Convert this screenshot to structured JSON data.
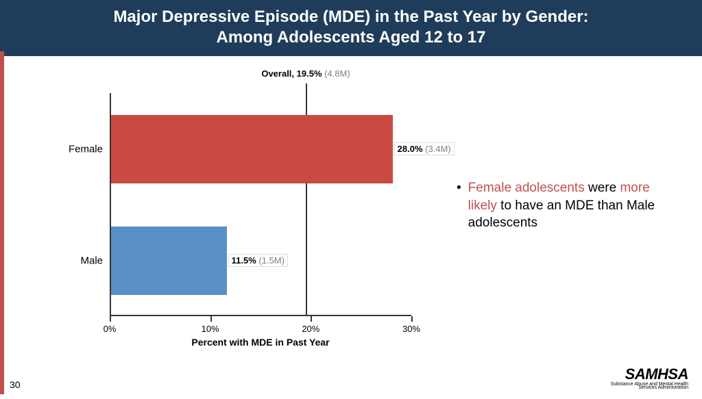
{
  "header": {
    "line1": "Major Depressive Episode (MDE) in the Past Year by Gender:",
    "line2": "Among Adolescents Aged 12 to 17"
  },
  "chart": {
    "type": "bar-horizontal",
    "x_title": "Percent with MDE in Past Year",
    "xlim": [
      0,
      30
    ],
    "tick_step": 10,
    "ticks": [
      {
        "value": 0,
        "label": "0%"
      },
      {
        "value": 10,
        "label": "10%"
      },
      {
        "value": 20,
        "label": "20%"
      },
      {
        "value": 30,
        "label": "30%"
      }
    ],
    "overall": {
      "value": 19.5,
      "label_bold": "Overall, 19.5%",
      "label_grey": " (4.8M)"
    },
    "bars": [
      {
        "category": "Female",
        "value": 28.0,
        "pct_label": "28.0%",
        "count_label": " (3.4M)",
        "color": "#c94a43"
      },
      {
        "category": "Male",
        "value": 11.5,
        "pct_label": "11.5%",
        "count_label": " (1.5M)",
        "color": "#5a8fc7"
      }
    ],
    "axis_color": "#333333",
    "background": "#ffffff",
    "font_size_labels": 13
  },
  "bullet": {
    "red1": "Female adolescents",
    "mid1": " were ",
    "red2": "more likely",
    "rest": " to have an MDE than Male adolescents"
  },
  "page_number": "30",
  "logo": {
    "main": "SAMHSA",
    "sub1": "Substance Abuse and Mental Health",
    "sub2": "Services Administration"
  },
  "colors": {
    "header_bg": "#1f3d5a",
    "accent_red": "#c0504d"
  }
}
